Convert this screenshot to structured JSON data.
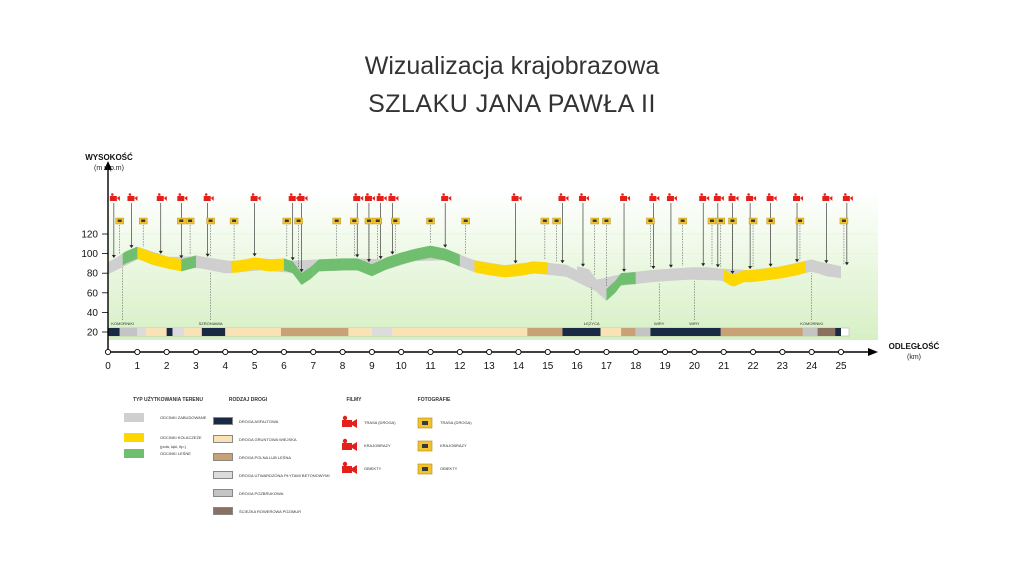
{
  "title_line1": "Wizualizacja krajobrazowa",
  "title_line2": "SZLAKU JANA PAWŁA II",
  "chart_data": {
    "type": "area",
    "ylabel": "WYSOKOŚĆ",
    "ylabel_unit": "(m n.p.m)",
    "xlabel": "ODLEGŁOŚĆ",
    "xlabel_unit": "(km)",
    "ylim": [
      20,
      120
    ],
    "xlim": [
      0,
      25
    ],
    "y_ticks": [
      20,
      40,
      60,
      80,
      100,
      120
    ],
    "x_ticks": [
      0,
      1,
      2,
      3,
      4,
      5,
      6,
      7,
      8,
      9,
      10,
      11,
      12,
      13,
      14,
      15,
      16,
      17,
      18,
      19,
      20,
      21,
      22,
      23,
      24,
      25
    ],
    "profile": {
      "x": [
        0,
        0.3,
        0.6,
        1.0,
        1.5,
        2.0,
        2.5,
        3.0,
        3.5,
        4.0,
        4.5,
        5.0,
        5.5,
        6.0,
        6.3,
        6.6,
        6.9,
        7.2,
        8.0,
        8.5,
        9.0,
        9.5,
        10.0,
        10.5,
        11.0,
        11.5,
        12.0,
        12.5,
        13.0,
        13.5,
        14.0,
        14.5,
        15.0,
        15.5,
        16.0,
        16.4,
        16.7,
        17.0,
        17.3,
        17.5,
        18.0,
        18.5,
        19.0,
        19.5,
        20.0,
        20.5,
        21.0,
        21.3,
        21.7,
        22.0,
        22.5,
        23.0,
        23.5,
        24.0,
        24.5,
        25.0
      ],
      "y": [
        85,
        90,
        96,
        101,
        95,
        91,
        88,
        92,
        89,
        86,
        87,
        90,
        88,
        89,
        86,
        74,
        80,
        88,
        89,
        89,
        83,
        90,
        95,
        99,
        102,
        99,
        93,
        87,
        84,
        82,
        83,
        86,
        85,
        83,
        81,
        78,
        66,
        58,
        66,
        74,
        75,
        77,
        78,
        79,
        80,
        80,
        78,
        72,
        77,
        77,
        79,
        81,
        84,
        88,
        83,
        81
      ]
    },
    "land_use_segments": [
      {
        "from": 0,
        "to": 0.5,
        "type": "zabudowane"
      },
      {
        "from": 0.5,
        "to": 1.8,
        "type": "lesne"
      },
      {
        "from": 1.0,
        "to": 2.8,
        "type": "kolaczeze"
      },
      {
        "from": 2.5,
        "to": 3.0,
        "type": "lesne"
      },
      {
        "from": 3.0,
        "to": 4.2,
        "type": "zabudowane"
      },
      {
        "from": 4.2,
        "to": 6.0,
        "type": "kolaczeze"
      },
      {
        "from": 6.0,
        "to": 7.0,
        "type": "lesne"
      },
      {
        "from": 7.0,
        "to": 8.0,
        "type": "lesne"
      },
      {
        "from": 8.0,
        "to": 12.0,
        "type": "lesne"
      },
      {
        "from": 12.5,
        "to": 15.0,
        "type": "kolaczeze"
      },
      {
        "from": 16.0,
        "to": 17.0,
        "type": "zabudowane"
      },
      {
        "from": 17.0,
        "to": 18.0,
        "type": "lesne"
      },
      {
        "from": 18.0,
        "to": 21.5,
        "type": "zabudowane"
      },
      {
        "from": 21.0,
        "to": 23.8,
        "type": "kolaczeze"
      },
      {
        "from": 23.8,
        "to": 25.0,
        "type": "zabudowane"
      }
    ],
    "road_segments": [
      {
        "from": 0,
        "to": 0.4,
        "type": "asfaltowa"
      },
      {
        "from": 0.4,
        "to": 1.0,
        "type": "pozbrukowa"
      },
      {
        "from": 1.0,
        "to": 1.3,
        "type": "utwardzona"
      },
      {
        "from": 1.3,
        "to": 2.0,
        "type": "gruntowa"
      },
      {
        "from": 2.0,
        "to": 2.2,
        "type": "asfaltowa"
      },
      {
        "from": 2.2,
        "to": 2.6,
        "type": "utwardzona"
      },
      {
        "from": 2.6,
        "to": 3.2,
        "type": "gruntowa"
      },
      {
        "from": 3.2,
        "to": 4.0,
        "type": "asfaltowa"
      },
      {
        "from": 4.0,
        "to": 5.9,
        "type": "gruntowa"
      },
      {
        "from": 5.9,
        "to": 8.2,
        "type": "polna"
      },
      {
        "from": 8.2,
        "to": 9.0,
        "type": "gruntowa"
      },
      {
        "from": 9.0,
        "to": 9.7,
        "type": "utwardzona"
      },
      {
        "from": 9.7,
        "to": 14.3,
        "type": "gruntowa"
      },
      {
        "from": 14.3,
        "to": 15.5,
        "type": "polna"
      },
      {
        "from": 15.5,
        "to": 16.8,
        "type": "asfaltowa"
      },
      {
        "from": 16.8,
        "to": 17.5,
        "type": "gruntowa"
      },
      {
        "from": 17.5,
        "to": 18.0,
        "type": "polna"
      },
      {
        "from": 18.0,
        "to": 18.5,
        "type": "pozbrukowa"
      },
      {
        "from": 18.5,
        "to": 20.9,
        "type": "asfaltowa"
      },
      {
        "from": 20.9,
        "to": 23.7,
        "type": "polna"
      },
      {
        "from": 23.7,
        "to": 24.2,
        "type": "pozbrukowa"
      },
      {
        "from": 24.2,
        "to": 24.8,
        "type": "sciezka"
      },
      {
        "from": 24.8,
        "to": 25.0,
        "type": "asfaltowa"
      }
    ],
    "place_labels": [
      {
        "x": 0.5,
        "text": "KOMORNIKI"
      },
      {
        "x": 3.5,
        "text": "SZRONIAWA"
      },
      {
        "x": 16.5,
        "text": "ŁĘŻYCA"
      },
      {
        "x": 18.8,
        "text": "WIRY"
      },
      {
        "x": 20.0,
        "text": "WIRY"
      },
      {
        "x": 24.0,
        "text": "KOMORNIKI"
      }
    ],
    "film_markers_x": [
      0.2,
      0.8,
      1.8,
      2.5,
      3.4,
      5.0,
      6.3,
      6.6,
      8.5,
      8.9,
      9.3,
      9.7,
      11.5,
      13.9,
      15.5,
      16.2,
      17.6,
      18.6,
      19.2,
      20.3,
      20.8,
      21.3,
      21.9,
      22.6,
      23.5,
      24.5,
      25.2
    ],
    "photo_markers_x": [
      0.4,
      1.2,
      2.5,
      2.8,
      3.5,
      4.3,
      6.1,
      6.5,
      7.8,
      8.4,
      8.9,
      9.2,
      9.8,
      11.0,
      12.2,
      14.9,
      15.3,
      16.6,
      17.0,
      18.5,
      19.6,
      20.6,
      20.9,
      21.3,
      22.0,
      22.6,
      23.6,
      25.1
    ]
  },
  "legend": {
    "land_use": {
      "title": "TYP UŻYTKOWANIA TERENU",
      "items": [
        {
          "label": "ODCINKI ZABUDOWANE",
          "note": "",
          "color": "#cfcfcf"
        },
        {
          "label": "ODCINKI KOLACZEŻE",
          "note": "(pola, łąki, itp.)",
          "color": "#ffd700"
        },
        {
          "label": "ODCINKI LEŚNE",
          "note": "",
          "color": "#6fbf6f"
        }
      ]
    },
    "roads": {
      "title": "RODZAJ DROGI",
      "items": [
        {
          "label": "DROGA ASFALTOWA",
          "color": "#1b2a44"
        },
        {
          "label": "DROGA GRUNTOWA WIEJSKA",
          "color": "#f8e2b6"
        },
        {
          "label": "DROGA POLNA LUB LEŚNA",
          "color": "#c8a276"
        },
        {
          "label": "DROGA UTWARDZONA PŁYTAMI BETONOWYMI",
          "color": "#dcdcdc"
        },
        {
          "label": "DROGA POZBRUKOWA",
          "color": "#c4c4c4"
        },
        {
          "label": "ŚCIEŻKA ROWEROWA POZIMUR",
          "color": "#8a7060"
        }
      ]
    },
    "films": {
      "title": "FILMY",
      "items": [
        {
          "label": "TRASA (DROGA)",
          "icon": "video-camera-icon",
          "color": "#e3201b"
        },
        {
          "label": "KRAJOBRAZY",
          "icon": "video-camera-icon",
          "color": "#e3201b"
        },
        {
          "label": "OBIEKTY",
          "icon": "video-camera-icon",
          "color": "#e3201b"
        }
      ]
    },
    "photos": {
      "title": "FOTOGRAFIE",
      "items": [
        {
          "label": "TRASA (DROGA)",
          "icon": "photo-camera-icon",
          "color": "#f2c230"
        },
        {
          "label": "KRAJOBRAZY",
          "icon": "photo-camera-icon",
          "color": "#f2c230"
        },
        {
          "label": "OBIEKTY",
          "icon": "photo-camera-icon",
          "color": "#f2c230"
        }
      ]
    }
  },
  "colors": {
    "background_gradient_top": "#ffffff",
    "background_gradient_bottom": "#d6f0c4",
    "zabudowane": "#cfcfcf",
    "kolaczeze": "#ffd700",
    "lesne": "#6fbf6f",
    "axis": "#000000"
  }
}
